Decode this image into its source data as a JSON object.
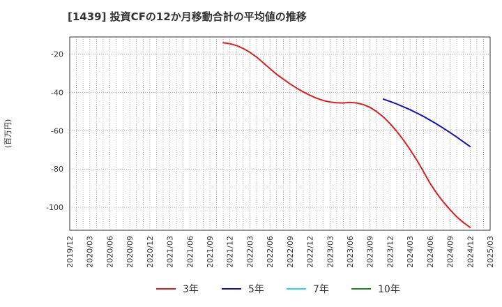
{
  "chart_data": {
    "type": "line",
    "title": "[1439]  投資CFの12か月移動合計の平均値の推移",
    "ylabel": "(百万円)",
    "xlabel": "",
    "x_ticks": [
      "2019/12",
      "2020/03",
      "2020/06",
      "2020/09",
      "2020/12",
      "2021/03",
      "2021/06",
      "2021/09",
      "2021/12",
      "2022/03",
      "2022/06",
      "2022/09",
      "2022/12",
      "2023/03",
      "2023/06",
      "2023/09",
      "2023/12",
      "2024/03",
      "2024/06",
      "2024/09",
      "2024/12",
      "2025/03"
    ],
    "y_ticks": [
      -20,
      -40,
      -60,
      -80,
      -100
    ],
    "ylim": [
      -112,
      -11
    ],
    "grid": true,
    "legend_position": "bottom",
    "series": [
      {
        "name": "3年",
        "color": "#dd1c1c",
        "points": [
          [
            "2021/11",
            -14.0
          ],
          [
            "2021/12",
            -14.5
          ],
          [
            "2022/01",
            -15.5
          ],
          [
            "2022/02",
            -17.0
          ],
          [
            "2022/03",
            -19.0
          ],
          [
            "2022/04",
            -21.5
          ],
          [
            "2022/05",
            -24.5
          ],
          [
            "2022/06",
            -27.5
          ],
          [
            "2022/07",
            -30.5
          ],
          [
            "2022/08",
            -33.0
          ],
          [
            "2022/09",
            -35.5
          ],
          [
            "2022/10",
            -37.7
          ],
          [
            "2022/11",
            -39.7
          ],
          [
            "2022/12",
            -41.5
          ],
          [
            "2023/01",
            -43.0
          ],
          [
            "2023/02",
            -44.2
          ],
          [
            "2023/03",
            -45.0
          ],
          [
            "2023/04",
            -45.4
          ],
          [
            "2023/05",
            -45.5
          ],
          [
            "2023/06",
            -45.2
          ],
          [
            "2023/07",
            -45.5
          ],
          [
            "2023/08",
            -46.3
          ],
          [
            "2023/09",
            -47.8
          ],
          [
            "2023/10",
            -50.0
          ],
          [
            "2023/11",
            -52.8
          ],
          [
            "2023/12",
            -56.3
          ],
          [
            "2024/01",
            -60.3
          ],
          [
            "2024/02",
            -64.8
          ],
          [
            "2024/03",
            -69.8
          ],
          [
            "2024/04",
            -75.3
          ],
          [
            "2024/05",
            -81.3
          ],
          [
            "2024/06",
            -87.5
          ],
          [
            "2024/07",
            -92.7
          ],
          [
            "2024/08",
            -97.3
          ],
          [
            "2024/09",
            -101.3
          ],
          [
            "2024/10",
            -105.0
          ],
          [
            "2024/11",
            -108.0
          ],
          [
            "2024/12",
            -110.5
          ]
        ]
      },
      {
        "name": "5年",
        "color": "#1010c0",
        "points": [
          [
            "2023/11",
            -43.5
          ],
          [
            "2023/12",
            -44.7
          ],
          [
            "2024/01",
            -46.0
          ],
          [
            "2024/02",
            -47.5
          ],
          [
            "2024/03",
            -49.0
          ],
          [
            "2024/04",
            -50.7
          ],
          [
            "2024/05",
            -52.5
          ],
          [
            "2024/06",
            -54.5
          ],
          [
            "2024/07",
            -56.5
          ],
          [
            "2024/08",
            -58.7
          ],
          [
            "2024/09",
            -61.0
          ],
          [
            "2024/10",
            -63.3
          ],
          [
            "2024/11",
            -65.8
          ],
          [
            "2024/12",
            -68.3
          ]
        ]
      },
      {
        "name": "7年",
        "color": "#22dddd",
        "points": []
      },
      {
        "name": "10年",
        "color": "#1a8a1a",
        "points": []
      }
    ]
  }
}
